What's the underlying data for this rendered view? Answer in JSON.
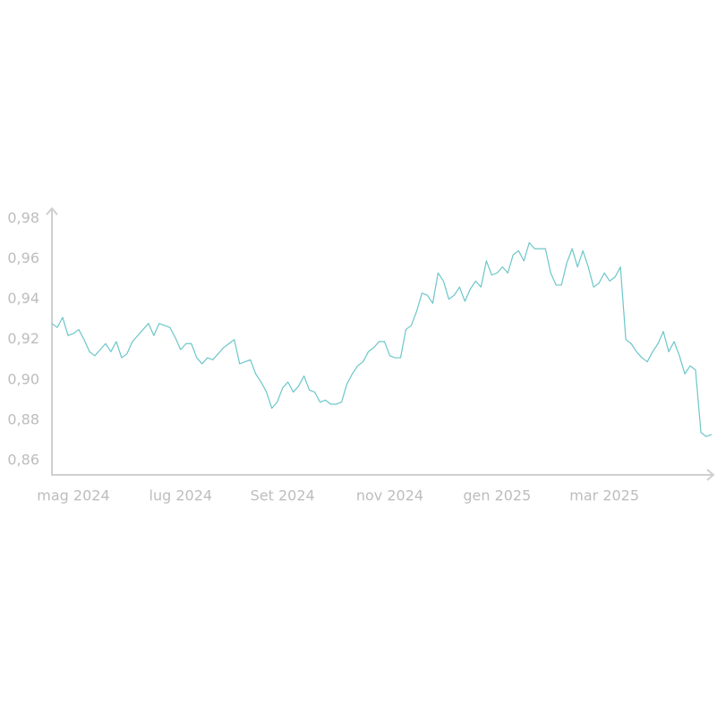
{
  "chart_data": {
    "type": "line",
    "categories": [
      null,
      null,
      null,
      null,
      "mag 2024",
      null,
      null,
      null,
      null,
      null,
      null,
      null,
      null,
      null,
      null,
      null,
      null,
      null,
      null,
      null,
      null,
      null,
      null,
      null,
      "lug 2024",
      null,
      null,
      null,
      null,
      null,
      null,
      null,
      null,
      null,
      null,
      null,
      null,
      null,
      null,
      null,
      null,
      null,
      null,
      "Set 2024",
      null,
      null,
      null,
      null,
      null,
      null,
      null,
      null,
      null,
      null,
      null,
      null,
      null,
      null,
      null,
      null,
      null,
      null,
      null,
      "nov 2024",
      null,
      null,
      null,
      null,
      null,
      null,
      null,
      null,
      null,
      null,
      null,
      null,
      null,
      null,
      null,
      null,
      null,
      null,
      null,
      "gen 2025",
      null,
      null,
      null,
      null,
      null,
      null,
      null,
      null,
      null,
      null,
      null,
      null,
      null,
      null,
      null,
      null,
      null,
      null,
      null,
      "mar 2025",
      null,
      null,
      null,
      null,
      null,
      null,
      null,
      null,
      null,
      null,
      null,
      null,
      null,
      null,
      null,
      null,
      null,
      null,
      null,
      null
    ],
    "series": [
      {
        "color": "#6cc6c9",
        "values": [
          0.928,
          0.926,
          0.931,
          0.922,
          0.923,
          0.925,
          0.92,
          0.914,
          0.912,
          0.915,
          0.918,
          0.914,
          0.919,
          0.911,
          0.913,
          0.919,
          0.922,
          0.925,
          0.928,
          0.922,
          0.928,
          0.927,
          0.926,
          0.921,
          0.915,
          0.918,
          0.918,
          0.911,
          0.908,
          0.911,
          0.91,
          0.913,
          0.916,
          0.918,
          0.92,
          0.908,
          0.909,
          0.91,
          0.903,
          0.899,
          0.894,
          0.886,
          0.889,
          0.896,
          0.899,
          0.894,
          0.897,
          0.902,
          0.895,
          0.894,
          0.889,
          0.89,
          0.888,
          0.888,
          0.889,
          0.898,
          0.903,
          0.907,
          0.909,
          0.914,
          0.916,
          0.919,
          0.919,
          0.912,
          0.911,
          0.911,
          0.925,
          0.927,
          0.934,
          0.943,
          0.942,
          0.938,
          0.953,
          0.949,
          0.94,
          0.942,
          0.946,
          0.939,
          0.945,
          0.949,
          0.946,
          0.959,
          0.952,
          0.953,
          0.956,
          0.953,
          0.962,
          0.964,
          0.959,
          0.968,
          0.965,
          0.965,
          0.965,
          0.953,
          0.947,
          0.947,
          0.958,
          0.965,
          0.956,
          0.964,
          0.956,
          0.946,
          0.948,
          0.953,
          0.949,
          0.951,
          0.956,
          0.92,
          0.918,
          0.914,
          0.911,
          0.909,
          0.914,
          0.918,
          0.924,
          0.914,
          0.919,
          0.912,
          0.903,
          0.907,
          0.905,
          0.874,
          0.872,
          0.873
        ]
      }
    ],
    "ylim": [
      0.853,
      0.985
    ],
    "yticks": [
      {
        "value": 0.86,
        "label": "0,86"
      },
      {
        "value": 0.88,
        "label": "0,88"
      },
      {
        "value": 0.9,
        "label": "0,90"
      },
      {
        "value": 0.92,
        "label": "0,92"
      },
      {
        "value": 0.94,
        "label": "0,94"
      },
      {
        "value": 0.96,
        "label": "0,96"
      },
      {
        "value": 0.98,
        "label": "0,98"
      }
    ]
  }
}
